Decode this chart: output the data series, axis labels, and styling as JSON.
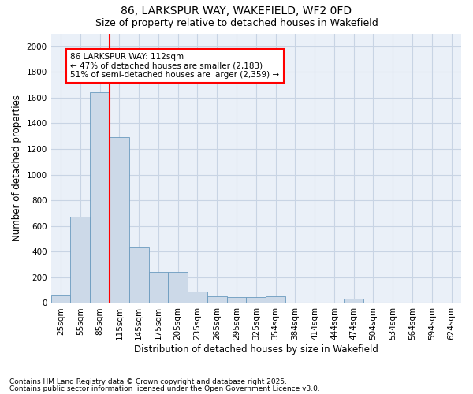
{
  "title_line1": "86, LARKSPUR WAY, WAKEFIELD, WF2 0FD",
  "title_line2": "Size of property relative to detached houses in Wakefield",
  "xlabel": "Distribution of detached houses by size in Wakefield",
  "ylabel": "Number of detached properties",
  "bar_color": "#ccd9e8",
  "bar_edge_color": "#6a9abf",
  "categories": [
    "25sqm",
    "55sqm",
    "85sqm",
    "115sqm",
    "145sqm",
    "175sqm",
    "205sqm",
    "235sqm",
    "265sqm",
    "295sqm",
    "325sqm",
    "354sqm",
    "384sqm",
    "414sqm",
    "444sqm",
    "474sqm",
    "504sqm",
    "534sqm",
    "564sqm",
    "594sqm",
    "624sqm"
  ],
  "values": [
    65,
    670,
    1640,
    1290,
    430,
    240,
    240,
    90,
    55,
    45,
    45,
    50,
    0,
    0,
    0,
    35,
    0,
    0,
    0,
    0,
    0
  ],
  "vline_bar_index": 2,
  "annotation_line1": "86 LARKSPUR WAY: 112sqm",
  "annotation_line2": "← 47% of detached houses are smaller (2,183)",
  "annotation_line3": "51% of semi-detached houses are larger (2,359) →",
  "ylim": [
    0,
    2100
  ],
  "yticks": [
    0,
    200,
    400,
    600,
    800,
    1000,
    1200,
    1400,
    1600,
    1800,
    2000
  ],
  "footnote1": "Contains HM Land Registry data © Crown copyright and database right 2025.",
  "footnote2": "Contains public sector information licensed under the Open Government Licence v3.0.",
  "title_fontsize": 10,
  "subtitle_fontsize": 9,
  "axis_label_fontsize": 8.5,
  "tick_fontsize": 7.5,
  "annotation_fontsize": 7.5,
  "footnote_fontsize": 6.5,
  "grid_color": "#c8d4e4",
  "bg_color": "#eaf0f8"
}
